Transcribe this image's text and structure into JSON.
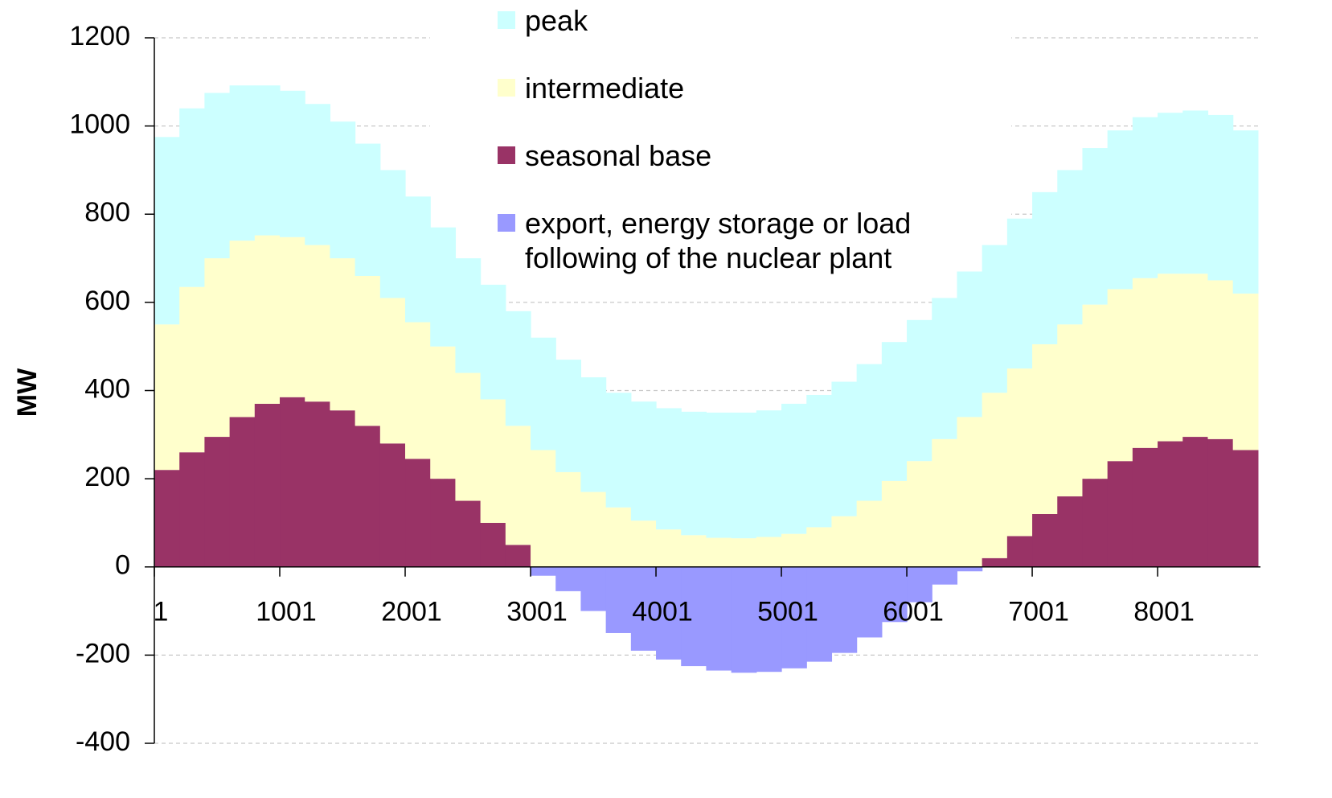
{
  "chart_data": {
    "type": "stacked_bar",
    "ylabel": "MW",
    "x": [
      1,
      201,
      401,
      601,
      801,
      1001,
      1201,
      1401,
      1601,
      1801,
      2001,
      2201,
      2401,
      2601,
      2801,
      3001,
      3201,
      3401,
      3601,
      3801,
      4001,
      4201,
      4401,
      4601,
      4801,
      5001,
      5201,
      5401,
      5601,
      5801,
      6001,
      6201,
      6401,
      6601,
      6801,
      7001,
      7201,
      7401,
      7601,
      7801,
      8001,
      8201,
      8401,
      8601
    ],
    "series": [
      {
        "name": "peak",
        "color": "#ccffff",
        "values": [
          425,
          405,
          375,
          352,
          340,
          332,
          320,
          310,
          300,
          290,
          285,
          270,
          260,
          260,
          260,
          255,
          255,
          260,
          260,
          270,
          275,
          280,
          284,
          285,
          287,
          295,
          300,
          305,
          310,
          315,
          320,
          320,
          330,
          335,
          340,
          345,
          350,
          355,
          360,
          365,
          365,
          370,
          375,
          370
        ]
      },
      {
        "name": "intermediate",
        "color": "#ffffcc",
        "values": [
          330,
          375,
          405,
          400,
          382,
          363,
          355,
          345,
          340,
          330,
          310,
          300,
          290,
          280,
          270,
          265,
          215,
          170,
          135,
          105,
          85,
          72,
          66,
          65,
          68,
          75,
          90,
          115,
          150,
          195,
          240,
          290,
          340,
          375,
          380,
          385,
          390,
          395,
          390,
          385,
          380,
          370,
          360,
          355
        ]
      },
      {
        "name": "seasonal base",
        "color": "#993366",
        "values": [
          220,
          260,
          295,
          340,
          370,
          385,
          375,
          355,
          320,
          280,
          245,
          200,
          150,
          100,
          50,
          0,
          0,
          0,
          0,
          0,
          0,
          0,
          0,
          0,
          0,
          0,
          0,
          0,
          0,
          0,
          0,
          0,
          0,
          20,
          70,
          120,
          160,
          200,
          240,
          270,
          285,
          295,
          290,
          265
        ]
      },
      {
        "name": "export, energy storage or load following of the nuclear plant",
        "color": "#9999ff",
        "values": [
          0,
          0,
          0,
          0,
          0,
          0,
          0,
          0,
          0,
          0,
          0,
          0,
          0,
          0,
          0,
          -20,
          -55,
          -100,
          -150,
          -190,
          -210,
          -225,
          -235,
          -240,
          -238,
          -230,
          -215,
          -195,
          -160,
          -125,
          -80,
          -40,
          -10,
          0,
          0,
          0,
          0,
          0,
          0,
          0,
          0,
          0,
          0,
          0
        ]
      }
    ],
    "xlim": [
      1,
      8821
    ],
    "xticks": [
      1,
      1001,
      2001,
      3001,
      4001,
      5001,
      6001,
      7001,
      8001
    ],
    "ylim": [
      -400,
      1200
    ],
    "yticks": [
      -400,
      -200,
      0,
      200,
      400,
      600,
      800,
      1000,
      1200
    ],
    "grid": true,
    "legend": "top"
  }
}
